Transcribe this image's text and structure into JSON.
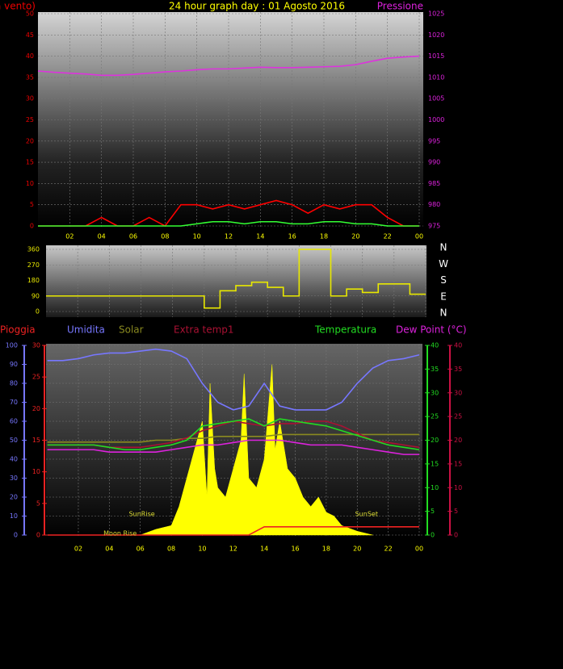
{
  "chart_data": [
    {
      "type": "line",
      "title": "24 hour graph day : 01 Agosto 2016",
      "y_label": "Forza vento)",
      "y2_label": "Pressione",
      "x": [
        0,
        1,
        2,
        3,
        4,
        5,
        6,
        7,
        8,
        9,
        10,
        11,
        12,
        13,
        14,
        15,
        16,
        17,
        18,
        19,
        20,
        21,
        22,
        23,
        24
      ],
      "xlim": [
        0,
        24
      ],
      "xticks": [
        {
          "value": 2,
          "label": "02"
        },
        {
          "value": 4,
          "label": "04"
        },
        {
          "value": 6,
          "label": "06"
        },
        {
          "value": 8,
          "label": "08"
        },
        10,
        12,
        14,
        16,
        18,
        20,
        22,
        {
          "value": 24,
          "label": "00"
        }
      ],
      "ylim": [
        0,
        50
      ],
      "yticks": [
        0,
        5,
        10,
        15,
        20,
        25,
        30,
        35,
        40,
        45,
        50
      ],
      "y2lim": [
        975,
        1025
      ],
      "y2ticks": [
        975,
        980,
        985,
        990,
        995,
        1000,
        1005,
        1010,
        1015,
        1020,
        1025
      ],
      "grid": true,
      "series": [
        {
          "color": "#ff0000",
          "values": [
            0,
            0,
            0,
            0,
            2,
            0,
            0,
            2,
            0,
            5,
            5,
            4,
            5,
            4,
            5,
            6,
            5,
            3,
            5,
            4,
            5,
            5,
            2,
            0,
            0
          ]
        },
        {
          "color": "#33ff33",
          "values": [
            0,
            0,
            0,
            0,
            0,
            0,
            0,
            0,
            0,
            0,
            0.5,
            1,
            1,
            0.5,
            1,
            1,
            0.5,
            0.5,
            1,
            1,
            0.5,
            0.5,
            0,
            0,
            0
          ]
        },
        {
          "color": "#dd33dd",
          "axis": "y2",
          "values": [
            1011.5,
            1011.2,
            1011,
            1010.8,
            1010.5,
            1010.5,
            1010.7,
            1011,
            1011.3,
            1011.5,
            1011.8,
            1012,
            1012,
            1012.2,
            1012.4,
            1012.3,
            1012.3,
            1012.4,
            1012.5,
            1012.6,
            1013,
            1013.8,
            1014.5,
            1014.8,
            1015
          ]
        }
      ]
    },
    {
      "type": "line",
      "x": [
        0,
        1,
        2,
        3,
        4,
        5,
        6,
        7,
        8,
        9,
        10,
        11,
        12,
        13,
        14,
        15,
        16,
        17,
        18,
        19,
        20,
        21,
        22,
        23,
        24
      ],
      "xlim": [
        0,
        24
      ],
      "ylim": [
        0,
        360
      ],
      "yticks": [
        0,
        90,
        180,
        270,
        360
      ],
      "direction_labels": [
        "N",
        "W",
        "S",
        "E",
        "N"
      ],
      "grid": true,
      "series": [
        {
          "color": "#e8e800",
          "step": true,
          "values": [
            90,
            90,
            90,
            90,
            90,
            90,
            90,
            90,
            90,
            90,
            20,
            120,
            150,
            170,
            140,
            90,
            360,
            360,
            90,
            130,
            110,
            160,
            160,
            100,
            100
          ]
        }
      ]
    },
    {
      "type": "line",
      "x": [
        0,
        1,
        2,
        3,
        4,
        5,
        6,
        7,
        8,
        9,
        10,
        11,
        12,
        13,
        14,
        15,
        16,
        17,
        18,
        19,
        20,
        21,
        22,
        23,
        24
      ],
      "xlim": [
        0,
        24
      ],
      "xticks": [
        {
          "value": 2,
          "label": "02"
        },
        {
          "value": 4,
          "label": "04"
        },
        {
          "value": 6,
          "label": "06"
        },
        {
          "value": 8,
          "label": "08"
        },
        10,
        12,
        14,
        16,
        18,
        20,
        22,
        {
          "value": 24,
          "label": "00"
        }
      ],
      "ylim": [
        0,
        100
      ],
      "yticks": [
        0,
        10,
        20,
        30,
        40,
        50,
        60,
        70,
        80,
        90,
        100
      ],
      "y2lim": [
        0,
        40
      ],
      "y2ticks": [
        0,
        5,
        10,
        15,
        20,
        25,
        30,
        35,
        40
      ],
      "y3lim": [
        0,
        30
      ],
      "y3ticks": [
        0,
        5,
        10,
        15,
        20,
        25,
        30
      ],
      "y4lim": [
        0,
        40
      ],
      "y4ticks": [
        0,
        5,
        10,
        15,
        20,
        25,
        30,
        35,
        40
      ],
      "grid": true,
      "annotations": [
        {
          "text": "SunRise",
          "x": 6.1
        },
        {
          "text": "SunSet",
          "x": 20.6
        },
        {
          "text": "Moon Rise",
          "x": 4.7
        }
      ],
      "series": [
        {
          "name": "Pioggia",
          "color": "#ee2222",
          "axis": "y3",
          "values": [
            0,
            0,
            0,
            0,
            0,
            0,
            0,
            0,
            0,
            0,
            0,
            0,
            0,
            0,
            1.3,
            1.3,
            1.3,
            1.3,
            1.3,
            1.3,
            1.3,
            1.3,
            1.3,
            1.3,
            1.3
          ]
        },
        {
          "name": "Umidita",
          "color": "#7777ff",
          "values": [
            92,
            92,
            93,
            95,
            96,
            96,
            97,
            98,
            97,
            93,
            80,
            70,
            66,
            68,
            80,
            68,
            66,
            66,
            66,
            70,
            80,
            88,
            92,
            93,
            95
          ]
        },
        {
          "name": "Solar",
          "color": "#8a8a20",
          "values": [
            49,
            49,
            49,
            49,
            49,
            49,
            49,
            50,
            50,
            51,
            51,
            52,
            52,
            52,
            52,
            53,
            53,
            53,
            53,
            53,
            53,
            53,
            53,
            53,
            53
          ]
        },
        {
          "name": "Extra temp1",
          "color": "#aa1133",
          "axis": "y2",
          "values": [
            19,
            19,
            19,
            19,
            18.5,
            18.5,
            18.5,
            19,
            19.5,
            20.5,
            22,
            23,
            24,
            23.5,
            23,
            23.5,
            23.5,
            24,
            24,
            23,
            21.5,
            20,
            19.5,
            19,
            18.5
          ]
        },
        {
          "name": "Temperatura",
          "color": "#22dd22",
          "axis": "y2",
          "values": [
            19,
            19,
            19,
            19,
            18.5,
            18,
            18,
            18.5,
            19,
            20,
            23,
            23.5,
            24,
            24.5,
            23,
            24.5,
            24,
            23.5,
            23,
            22,
            21,
            20,
            19,
            18.5,
            18
          ]
        },
        {
          "name": "Dew Point (°C)",
          "color": "#dd22dd",
          "axis": "y2",
          "values": [
            18,
            18,
            18,
            18,
            17.5,
            17.5,
            17.5,
            17.5,
            18,
            18.5,
            19,
            19,
            19.5,
            20,
            20,
            20,
            19.5,
            19,
            19,
            19,
            18.5,
            18,
            17.5,
            17,
            17
          ]
        },
        {
          "color": "#ffff00",
          "fill": true,
          "x": [
            6,
            7,
            8,
            8.5,
            9,
            9.5,
            10,
            10.3,
            10.5,
            10.8,
            11,
            11.5,
            12,
            12.5,
            12.7,
            13,
            13.5,
            14,
            14.5,
            14.7,
            15,
            15.5,
            16,
            16.5,
            17,
            17.5,
            18,
            18.5,
            19,
            20,
            21
          ],
          "values": [
            0,
            3,
            5,
            15,
            30,
            45,
            60,
            20,
            80,
            35,
            25,
            20,
            35,
            50,
            85,
            30,
            25,
            40,
            90,
            45,
            60,
            35,
            30,
            20,
            15,
            20,
            12,
            10,
            5,
            2,
            0
          ]
        }
      ]
    }
  ]
}
